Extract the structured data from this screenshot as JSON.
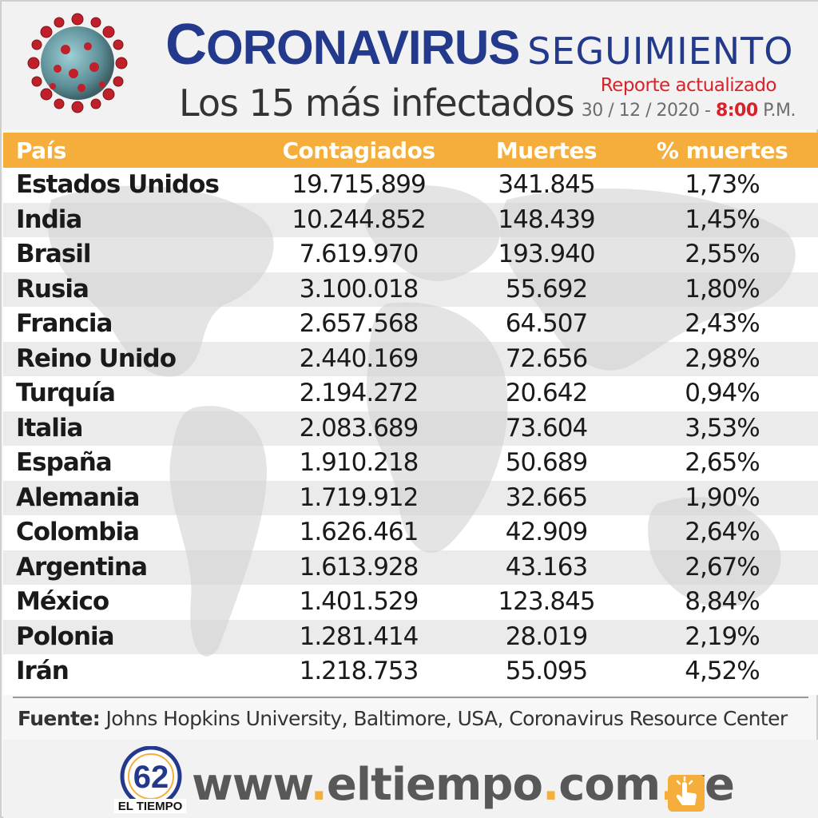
{
  "header": {
    "title_first": "C",
    "title_rest": "ORONAVIRUS",
    "title_sub": "SEGUIMIENTO",
    "subtitle": "Los 15 más infectados",
    "report_label": "Reporte actualizado",
    "report_date": "30 / 12 / 2020 - ",
    "report_time": "8:00",
    "report_ampm": " P.M."
  },
  "table": {
    "columns": [
      "País",
      "Contagiados",
      "Muertes",
      "% muertes"
    ],
    "rows": [
      [
        "Estados Unidos",
        "19.715.899",
        "341.845",
        "1,73%"
      ],
      [
        "India",
        "10.244.852",
        "148.439",
        "1,45%"
      ],
      [
        "Brasil",
        "7.619.970",
        "193.940",
        "2,55%"
      ],
      [
        "Rusia",
        "3.100.018",
        "55.692",
        "1,80%"
      ],
      [
        "Francia",
        "2.657.568",
        "64.507",
        "2,43%"
      ],
      [
        "Reino Unido",
        "2.440.169",
        "72.656",
        "2,98%"
      ],
      [
        "Turquía",
        "2.194.272",
        "20.642",
        "0,94%"
      ],
      [
        "Italia",
        "2.083.689",
        "73.604",
        "3,53%"
      ],
      [
        "España",
        "1.910.218",
        "50.689",
        "2,65%"
      ],
      [
        "Alemania",
        "1.719.912",
        "32.665",
        "1,90%"
      ],
      [
        "Colombia",
        "1.626.461",
        "42.909",
        "2,64%"
      ],
      [
        "Argentina",
        "1.613.928",
        "43.163",
        "2,67%"
      ],
      [
        "México",
        "1.401.529",
        "123.845",
        "8,84%"
      ],
      [
        "Polonia",
        "1.281.414",
        "28.019",
        "2,19%"
      ],
      [
        "Irán",
        "1.218.753",
        "55.095",
        "4,52%"
      ]
    ]
  },
  "footer": {
    "source_label": "Fuente:",
    "source_text": " Johns Hopkins University, Baltimore, USA, Coronavirus Resource Center",
    "url_parts": [
      "www",
      ".",
      "eltiempo",
      ".",
      "com",
      ".",
      "ve"
    ],
    "logo_text": "EL TIEMPO",
    "logo_number": "62"
  },
  "colors": {
    "title_blue": "#233a8c",
    "header_orange": "#f5ae3b",
    "accent_red": "#d8222a"
  },
  "icons": [
    "coronavirus-icon",
    "world-map-background",
    "el-tiempo-logo",
    "click-hand-icon"
  ]
}
